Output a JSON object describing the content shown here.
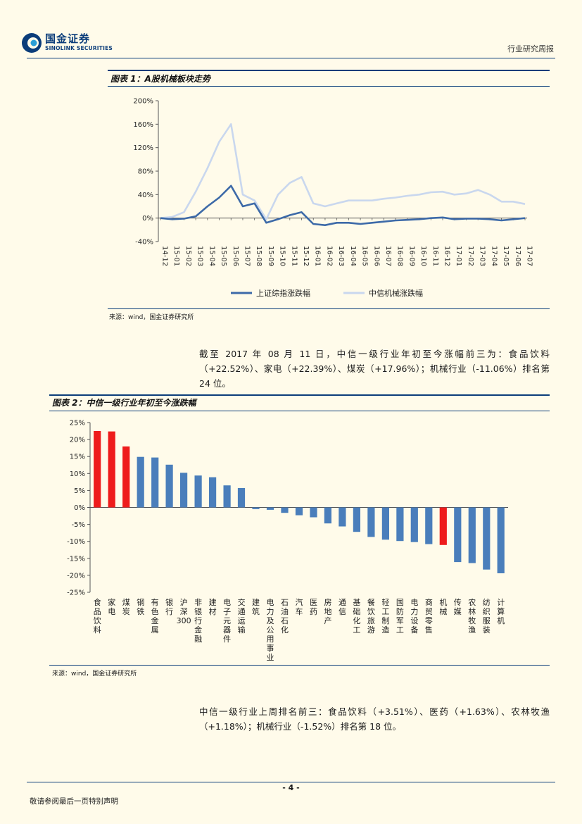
{
  "header": {
    "logo_cn": "国金证券",
    "logo_en": "SINOLINK SECURITIES",
    "report_type": "行业研究周报"
  },
  "figure1": {
    "title": "图表 1：A股机械板块走势",
    "source": "来源：wind，国金证券研究所"
  },
  "paragraph1": "截至 2017 年 08 月 11 日，中信一级行业年初至今涨幅前三为：食品饮料（+22.52%）、家电（+22.39%）、煤炭（+17.96%）；机械行业（-11.06%）排名第 24 位。",
  "figure2": {
    "title": "图表 2：中信一级行业年初至今涨跌幅",
    "source": "来源：wind，国金证券研究所"
  },
  "paragraph2": "中信一级行业上周排名前三：食品饮料（+3.51%）、医药（+1.63%）、农林牧渔（+1.18%）；机械行业（-1.52%）排名第 18 位。",
  "footer": {
    "page_number": "- 4 -",
    "disclaimer": "敬请参阅最后一页特别声明"
  },
  "chart_data": [
    {
      "type": "line",
      "title": "图表 1：A股机械板块走势",
      "x": [
        "14-12",
        "15-01",
        "15-02",
        "15-03",
        "15-04",
        "15-05",
        "15-06",
        "15-07",
        "15-08",
        "15-09",
        "15-10",
        "15-11",
        "15-12",
        "16-01",
        "16-02",
        "16-03",
        "16-04",
        "16-05",
        "16-06",
        "16-07",
        "16-08",
        "16-09",
        "16-10",
        "16-11",
        "16-12",
        "17-01",
        "17-02",
        "17-03",
        "17-04",
        "17-05",
        "17-06",
        "17-07"
      ],
      "ylim": [
        -40,
        200
      ],
      "y_ticks": [
        "-40%",
        "0%",
        "40%",
        "80%",
        "120%",
        "160%",
        "200%"
      ],
      "series": [
        {
          "name": "上证综指涨跌幅",
          "color": "#3d6aa8",
          "values": [
            0,
            -2,
            -1,
            3,
            20,
            35,
            55,
            20,
            25,
            -8,
            -2,
            5,
            10,
            -10,
            -12,
            -8,
            -8,
            -10,
            -8,
            -6,
            -4,
            -3,
            -2,
            0,
            1,
            -2,
            -1,
            -1,
            -2,
            -4,
            -2,
            0
          ]
        },
        {
          "name": "中信机械涨跌幅",
          "color": "#c9d7ee",
          "values": [
            0,
            2,
            10,
            45,
            85,
            130,
            160,
            40,
            30,
            -2,
            40,
            60,
            70,
            25,
            20,
            25,
            30,
            30,
            30,
            33,
            35,
            38,
            40,
            44,
            45,
            40,
            42,
            48,
            40,
            28,
            28,
            24
          ]
        }
      ]
    },
    {
      "type": "bar",
      "title": "图表 2：中信一级行业年初至今涨跌幅",
      "ylim": [
        -25,
        25
      ],
      "y_ticks": [
        "25%",
        "20%",
        "15%",
        "10%",
        "5%",
        "0%",
        "-5%",
        "-10%",
        "-15%",
        "-20%",
        "-25%"
      ],
      "categories": [
        "食品饮料",
        "家电",
        "煤炭",
        "钢铁",
        "有色金属",
        "银行",
        "沪深300",
        "非银行金融",
        "建材",
        "电子元器件",
        "交通运输",
        "建筑",
        "电力及公用事业",
        "石油石化",
        "汽车",
        "医药",
        "房地产",
        "通信",
        "基础化工",
        "餐饮旅游",
        "轻工制造",
        "国防军工",
        "电力设备",
        "商贸零售",
        "机械",
        "传媒",
        "农林牧渔",
        "纺织服装",
        "计算机"
      ],
      "values": [
        22.52,
        22.39,
        17.96,
        14.9,
        14.7,
        12.6,
        10.2,
        9.4,
        8.9,
        6.5,
        5.7,
        -0.5,
        -0.7,
        -1.6,
        -2.3,
        -2.9,
        -4.7,
        -5.6,
        -7.2,
        -8.7,
        -9.5,
        -9.9,
        -10.2,
        -10.8,
        -11.06,
        -16.1,
        -16.4,
        -18.3,
        -19.4
      ],
      "highlight_color": "#ee1c1c",
      "base_color": "#4a7ebb",
      "highlighted": [
        "食品饮料",
        "家电",
        "煤炭",
        "机械"
      ]
    }
  ]
}
